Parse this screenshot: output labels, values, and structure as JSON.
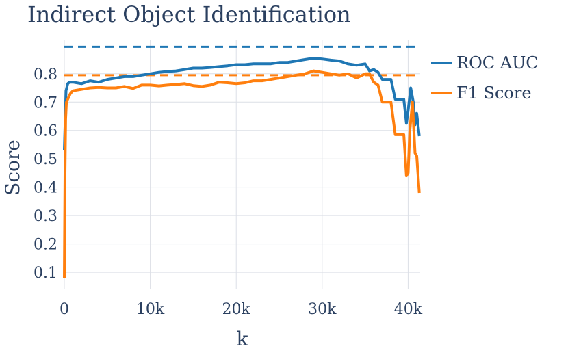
{
  "chart_data": {
    "type": "line",
    "title": "Indirect Object Identification",
    "xlabel": "k",
    "ylabel": "Score",
    "xlim": [
      0,
      41400
    ],
    "ylim": [
      0.04,
      0.92
    ],
    "x_ticks": [
      {
        "value": 0,
        "label": "0"
      },
      {
        "value": 10000,
        "label": "10k"
      },
      {
        "value": 20000,
        "label": "20k"
      },
      {
        "value": 30000,
        "label": "30k"
      },
      {
        "value": 40000,
        "label": "40k"
      }
    ],
    "y_ticks": [
      {
        "value": 0.1,
        "label": "0.1"
      },
      {
        "value": 0.2,
        "label": "0.2"
      },
      {
        "value": 0.3,
        "label": "0.3"
      },
      {
        "value": 0.4,
        "label": "0.4"
      },
      {
        "value": 0.5,
        "label": "0.5"
      },
      {
        "value": 0.6,
        "label": "0.6"
      },
      {
        "value": 0.7,
        "label": "0.7"
      },
      {
        "value": 0.8,
        "label": "0.8"
      }
    ],
    "grid": true,
    "legend_position": "top-right",
    "series": [
      {
        "name": "ROC AUC",
        "color": "#1f77b4",
        "x": [
          0,
          200,
          400,
          600,
          1000,
          2000,
          3000,
          4000,
          5000,
          6000,
          7000,
          8000,
          9000,
          10000,
          11000,
          12000,
          13000,
          14000,
          15000,
          16000,
          17000,
          18000,
          19000,
          20000,
          21000,
          22000,
          23000,
          24000,
          25000,
          26000,
          27000,
          28000,
          29000,
          30000,
          31000,
          32000,
          33000,
          34000,
          35000,
          35500,
          36000,
          36500,
          37000,
          37500,
          38000,
          38500,
          39000,
          39500,
          39800,
          40000,
          40300,
          40600,
          40800,
          41000,
          41300
        ],
        "values": [
          0.53,
          0.74,
          0.765,
          0.77,
          0.77,
          0.765,
          0.775,
          0.77,
          0.78,
          0.785,
          0.79,
          0.79,
          0.795,
          0.8,
          0.805,
          0.808,
          0.81,
          0.815,
          0.82,
          0.82,
          0.822,
          0.825,
          0.828,
          0.832,
          0.832,
          0.835,
          0.835,
          0.835,
          0.84,
          0.84,
          0.845,
          0.85,
          0.855,
          0.852,
          0.848,
          0.845,
          0.835,
          0.83,
          0.835,
          0.81,
          0.815,
          0.805,
          0.78,
          0.78,
          0.78,
          0.71,
          0.71,
          0.71,
          0.625,
          0.67,
          0.75,
          0.7,
          0.62,
          0.66,
          0.58
        ]
      },
      {
        "name": "F1 Score",
        "color": "#ff7f0e",
        "x": [
          0,
          80,
          150,
          250,
          400,
          700,
          1000,
          2000,
          3000,
          4000,
          5000,
          6000,
          7000,
          8000,
          9000,
          10000,
          11000,
          12000,
          13000,
          14000,
          15000,
          16000,
          17000,
          18000,
          19000,
          20000,
          21000,
          22000,
          23000,
          24000,
          25000,
          26000,
          27000,
          28000,
          29000,
          30000,
          31000,
          32000,
          33000,
          34000,
          35000,
          35500,
          36000,
          36500,
          37000,
          37500,
          38000,
          38500,
          39000,
          39500,
          39800,
          40000,
          40200,
          40500,
          40800,
          41000,
          41300
        ],
        "values": [
          0.08,
          0.45,
          0.64,
          0.7,
          0.71,
          0.73,
          0.74,
          0.745,
          0.75,
          0.752,
          0.75,
          0.75,
          0.755,
          0.748,
          0.76,
          0.76,
          0.757,
          0.76,
          0.762,
          0.765,
          0.758,
          0.755,
          0.76,
          0.77,
          0.768,
          0.765,
          0.768,
          0.775,
          0.775,
          0.78,
          0.785,
          0.79,
          0.795,
          0.8,
          0.81,
          0.805,
          0.8,
          0.795,
          0.8,
          0.785,
          0.8,
          0.8,
          0.77,
          0.76,
          0.7,
          0.7,
          0.7,
          0.585,
          0.585,
          0.585,
          0.44,
          0.45,
          0.6,
          0.7,
          0.52,
          0.51,
          0.38
        ]
      }
    ],
    "reference_lines": [
      {
        "series": "ROC AUC",
        "value": 0.895,
        "style": "dashed",
        "color": "#1f77b4"
      },
      {
        "series": "F1 Score",
        "value": 0.795,
        "style": "dashed",
        "color": "#ff7f0e"
      }
    ]
  }
}
